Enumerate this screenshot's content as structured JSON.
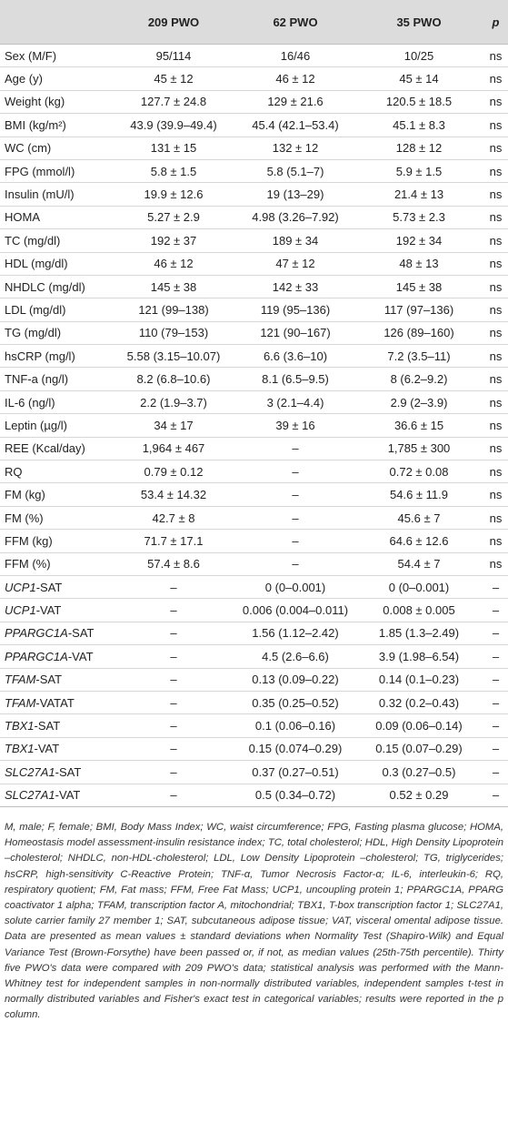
{
  "header": {
    "col0": "",
    "col1": "209 PWO",
    "col2": "62 PWO",
    "col3": "35 PWO",
    "col4": "p"
  },
  "rows": [
    {
      "label": "Sex (M/F)",
      "italic_gene": "",
      "suffix": "",
      "c1": "95/114",
      "c2": "16/46",
      "c3": "10/25",
      "p": "ns"
    },
    {
      "label": "Age (y)",
      "italic_gene": "",
      "suffix": "",
      "c1": "45 ± 12",
      "c2": "46 ± 12",
      "c3": "45 ± 14",
      "p": "ns"
    },
    {
      "label": "Weight (kg)",
      "italic_gene": "",
      "suffix": "",
      "c1": "127.7 ± 24.8",
      "c2": "129 ± 21.6",
      "c3": "120.5 ± 18.5",
      "p": "ns"
    },
    {
      "label": "BMI (kg/m²)",
      "italic_gene": "",
      "suffix": "",
      "c1": "43.9 (39.9–49.4)",
      "c2": "45.4 (42.1–53.4)",
      "c3": "45.1 ± 8.3",
      "p": "ns"
    },
    {
      "label": "WC (cm)",
      "italic_gene": "",
      "suffix": "",
      "c1": "131 ± 15",
      "c2": "132 ± 12",
      "c3": "128 ± 12",
      "p": "ns"
    },
    {
      "label": "FPG (mmol/l)",
      "italic_gene": "",
      "suffix": "",
      "c1": "5.8 ± 1.5",
      "c2": "5.8 (5.1–7)",
      "c3": "5.9 ± 1.5",
      "p": "ns"
    },
    {
      "label": "Insulin (mU/l)",
      "italic_gene": "",
      "suffix": "",
      "c1": "19.9 ± 12.6",
      "c2": "19 (13–29)",
      "c3": "21.4 ± 13",
      "p": "ns"
    },
    {
      "label": "HOMA",
      "italic_gene": "",
      "suffix": "",
      "c1": "5.27 ± 2.9",
      "c2": "4.98 (3.26–7.92)",
      "c3": "5.73 ± 2.3",
      "p": "ns"
    },
    {
      "label": "TC (mg/dl)",
      "italic_gene": "",
      "suffix": "",
      "c1": "192 ± 37",
      "c2": "189 ± 34",
      "c3": "192 ± 34",
      "p": "ns"
    },
    {
      "label": "HDL (mg/dl)",
      "italic_gene": "",
      "suffix": "",
      "c1": "46 ± 12",
      "c2": "47 ± 12",
      "c3": "48 ± 13",
      "p": "ns"
    },
    {
      "label": "NHDLC (mg/dl)",
      "italic_gene": "",
      "suffix": "",
      "c1": "145 ± 38",
      "c2": "142 ± 33",
      "c3": "145 ± 38",
      "p": "ns"
    },
    {
      "label": "LDL (mg/dl)",
      "italic_gene": "",
      "suffix": "",
      "c1": "121 (99–138)",
      "c2": "119 (95–136)",
      "c3": "117 (97–136)",
      "p": "ns"
    },
    {
      "label": "TG (mg/dl)",
      "italic_gene": "",
      "suffix": "",
      "c1": "110 (79–153)",
      "c2": "121 (90–167)",
      "c3": "126 (89–160)",
      "p": "ns"
    },
    {
      "label": "hsCRP (mg/l)",
      "italic_gene": "",
      "suffix": "",
      "c1": "5.58 (3.15–10.07)",
      "c2": "6.6 (3.6–10)",
      "c3": "7.2 (3.5–11)",
      "p": "ns"
    },
    {
      "label": "TNF-a (ng/l)",
      "italic_gene": "",
      "suffix": "",
      "c1": "8.2 (6.8–10.6)",
      "c2": "8.1 (6.5–9.5)",
      "c3": "8 (6.2–9.2)",
      "p": "ns"
    },
    {
      "label": "IL-6 (ng/l)",
      "italic_gene": "",
      "suffix": "",
      "c1": "2.2 (1.9–3.7)",
      "c2": "3 (2.1–4.4)",
      "c3": "2.9 (2–3.9)",
      "p": "ns"
    },
    {
      "label": "Leptin (µg/l)",
      "italic_gene": "",
      "suffix": "",
      "c1": "34 ± 17",
      "c2": "39 ± 16",
      "c3": "36.6 ± 15",
      "p": "ns"
    },
    {
      "label": "REE (Kcal/day)",
      "italic_gene": "",
      "suffix": "",
      "c1": "1,964 ± 467",
      "c2": "–",
      "c3": "1,785 ± 300",
      "p": "ns"
    },
    {
      "label": "RQ",
      "italic_gene": "",
      "suffix": "",
      "c1": "0.79 ± 0.12",
      "c2": "–",
      "c3": "0.72 ± 0.08",
      "p": "ns"
    },
    {
      "label": "FM (kg)",
      "italic_gene": "",
      "suffix": "",
      "c1": "53.4 ± 14.32",
      "c2": "–",
      "c3": "54.6 ± 11.9",
      "p": "ns"
    },
    {
      "label": "FM (%)",
      "italic_gene": "",
      "suffix": "",
      "c1": "42.7 ± 8",
      "c2": "–",
      "c3": "45.6 ± 7",
      "p": "ns"
    },
    {
      "label": "FFM (kg)",
      "italic_gene": "",
      "suffix": "",
      "c1": "71.7 ± 17.1",
      "c2": "–",
      "c3": "64.6 ± 12.6",
      "p": "ns"
    },
    {
      "label": "FFM (%)",
      "italic_gene": "",
      "suffix": "",
      "c1": "57.4 ± 8.6",
      "c2": "–",
      "c3": "54.4 ± 7",
      "p": "ns"
    },
    {
      "label": "",
      "italic_gene": "UCP1",
      "suffix": "-SAT",
      "c1": "–",
      "c2": "0 (0–0.001)",
      "c3": "0 (0–0.001)",
      "p": "–"
    },
    {
      "label": "",
      "italic_gene": "UCP1",
      "suffix": "-VAT",
      "c1": "–",
      "c2": "0.006 (0.004–0.011)",
      "c3": "0.008 ± 0.005",
      "p": "–"
    },
    {
      "label": "",
      "italic_gene": "PPARGC1A",
      "suffix": "-SAT",
      "c1": "–",
      "c2": "1.56 (1.12–2.42)",
      "c3": "1.85 (1.3–2.49)",
      "p": "–"
    },
    {
      "label": "",
      "italic_gene": "PPARGC1A",
      "suffix": "-VAT",
      "c1": "–",
      "c2": "4.5 (2.6–6.6)",
      "c3": "3.9 (1.98–6.54)",
      "p": "–"
    },
    {
      "label": "",
      "italic_gene": "TFAM",
      "suffix": "-SAT",
      "c1": "–",
      "c2": "0.13 (0.09–0.22)",
      "c3": "0.14 (0.1–0.23)",
      "p": "–"
    },
    {
      "label": "",
      "italic_gene": "TFAM",
      "suffix": "-VATAT",
      "c1": "–",
      "c2": "0.35 (0.25–0.52)",
      "c3": "0.32 (0.2–0.43)",
      "p": "–"
    },
    {
      "label": "",
      "italic_gene": "TBX1",
      "suffix": "-SAT",
      "c1": "–",
      "c2": "0.1 (0.06–0.16)",
      "c3": "0.09 (0.06–0.14)",
      "p": "–"
    },
    {
      "label": "",
      "italic_gene": "TBX1",
      "suffix": "-VAT",
      "c1": "–",
      "c2": "0.15 (0.074–0.29)",
      "c3": "0.15 (0.07–0.29)",
      "p": "–"
    },
    {
      "label": "",
      "italic_gene": "SLC27A1",
      "suffix": "-SAT",
      "c1": "–",
      "c2": "0.37 (0.27–0.51)",
      "c3": "0.3 (0.27–0.5)",
      "p": "–"
    },
    {
      "label": "",
      "italic_gene": "SLC27A1",
      "suffix": "-VAT",
      "c1": "–",
      "c2": "0.5 (0.34–0.72)",
      "c3": "0.52 ± 0.29",
      "p": "–"
    }
  ],
  "footnote": "M, male; F, female; BMI, Body Mass Index; WC, waist circumference; FPG, Fasting plasma glucose; HOMA, Homeostasis model assessment-insulin resistance index; TC, total cholesterol; HDL, High Density Lipoprotein –cholesterol; NHDLC, non-HDL-cholesterol; LDL, Low Density Lipoprotein –cholesterol; TG, triglycerides; hsCRP, high-sensitivity C-Reactive Protein; TNF-α, Tumor Necrosis Factor-α; IL-6, interleukin-6; RQ, respiratory quotient; FM, Fat mass; FFM, Free Fat Mass; UCP1, uncoupling protein 1; PPARGC1A, PPARG coactivator 1 alpha; TFAM, transcription factor A, mitochondrial; TBX1, T-box transcription factor 1; SLC27A1, solute carrier family 27 member 1; SAT, subcutaneous adipose tissue; VAT, visceral omental adipose tissue. Data are presented as mean values ± standard deviations when Normality Test (Shapiro-Wilk) and Equal Variance Test (Brown-Forsythe) have been passed or, if not, as median values (25th-75th percentile). Thirty five PWO's data were compared with 209 PWO's data; statistical analysis was performed with the Mann-Whitney test for independent samples in non-normally distributed variables, independent samples t-test in normally distributed variables and Fisher's exact test in categorical variables; results were reported in the p column."
}
